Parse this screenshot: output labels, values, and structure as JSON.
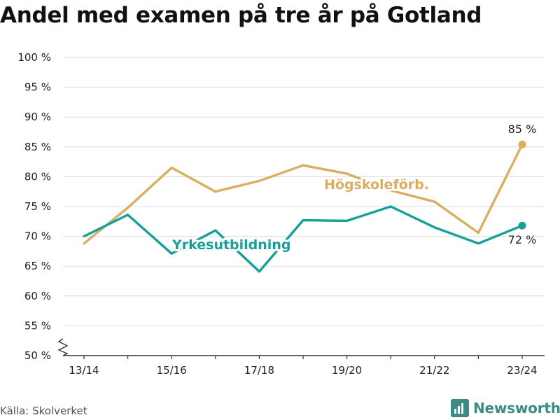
{
  "title": "Andel med examen på tre år på Gotland",
  "source": "Källa: Skolverket",
  "brand": "Newsworthy",
  "chart_data": {
    "type": "line",
    "title": "Andel med examen på tre år på Gotland",
    "x": [
      "13/14",
      "14/15",
      "15/16",
      "16/17",
      "17/18",
      "18/19",
      "19/20",
      "20/21",
      "21/22",
      "22/23",
      "23/24"
    ],
    "x_tick_labels": [
      "13/14",
      "15/16",
      "17/18",
      "19/20",
      "21/22",
      "23/24"
    ],
    "y_ticks": [
      "50 %",
      "55 %",
      "60 %",
      "65 %",
      "70 %",
      "75 %",
      "80 %",
      "85 %",
      "90 %",
      "95 %",
      "100 %"
    ],
    "ylim": [
      50,
      100
    ],
    "grid": true,
    "y_axis_break": true,
    "series": [
      {
        "name": "Högskoleförb.",
        "color": "#d9ae5f",
        "values": [
          68.8,
          74.8,
          81.5,
          77.5,
          79.3,
          81.9,
          80.5,
          77.7,
          75.8,
          70.6,
          85.4
        ],
        "end_label": "85 %"
      },
      {
        "name": "Yrkesutbildning",
        "color": "#16a099",
        "values": [
          70.0,
          73.6,
          67.1,
          71.0,
          64.1,
          72.7,
          72.6,
          75.0,
          71.5,
          68.8,
          71.8
        ],
        "end_label": "72 %"
      }
    ]
  }
}
